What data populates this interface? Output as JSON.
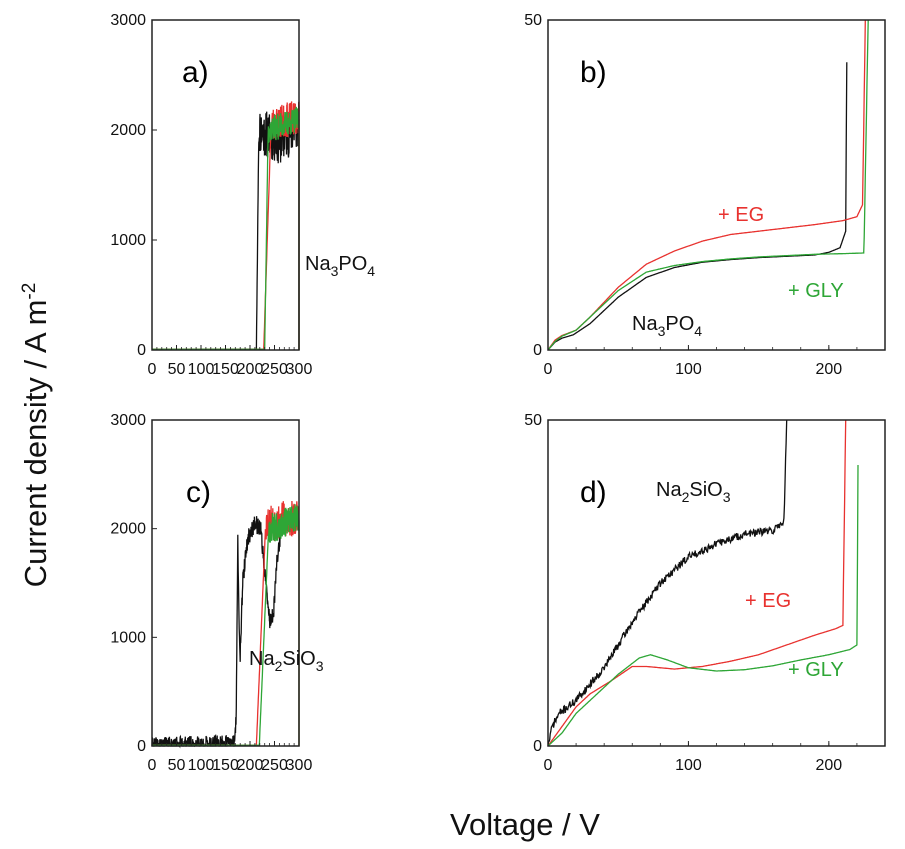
{
  "figure": {
    "ylabel": "Current density / A m",
    "ylabel_sup": "-2",
    "xlabel": "Voltage / V"
  },
  "colors": {
    "Na": "#111111",
    "EG": "#e8322f",
    "GLY": "#2ea636"
  },
  "chart_data": [
    {
      "type": "line",
      "panel": "a)",
      "xlim": [
        0,
        300
      ],
      "ylim": [
        0,
        3000
      ],
      "xticks": [
        0,
        50,
        100,
        150,
        200,
        250,
        300
      ],
      "yticks": [
        0,
        1000,
        2000,
        3000
      ],
      "annotations": [
        {
          "key": "Na",
          "base": "Na",
          "sub1": "3",
          "mid": "PO",
          "sub2": "4"
        }
      ],
      "series": [
        {
          "key": "Na",
          "onset": 213,
          "plateau": [
            [
              218,
              2000
            ],
            [
              260,
              1900
            ],
            [
              300,
              2050
            ]
          ],
          "noise": 220,
          "seed": 11
        },
        {
          "key": "EG",
          "onset": 228,
          "plateau": [
            [
              243,
              2050
            ],
            [
              300,
              2120
            ]
          ],
          "noise": 160,
          "seed": 23
        },
        {
          "key": "GLY",
          "onset": 230,
          "plateau": [
            [
              237,
              2000
            ],
            [
              300,
              2100
            ]
          ],
          "noise": 120,
          "seed": 37
        }
      ]
    },
    {
      "type": "line",
      "panel": "b)",
      "xlim": [
        0,
        240
      ],
      "ylim": [
        0,
        50
      ],
      "xticks": [
        0,
        100,
        200
      ],
      "yticks": [
        0,
        50
      ],
      "annotations": [
        {
          "key": "EG",
          "text": "+ EG"
        },
        {
          "key": "GLY",
          "text": "+ GLY"
        },
        {
          "key": "Na",
          "base": "Na",
          "sub1": "3",
          "mid": "PO",
          "sub2": "4"
        }
      ],
      "series": [
        {
          "key": "Na",
          "points": [
            [
              0,
              0
            ],
            [
              5,
              1.2
            ],
            [
              10,
              1.8
            ],
            [
              18,
              2.3
            ],
            [
              30,
              4
            ],
            [
              50,
              8
            ],
            [
              70,
              11
            ],
            [
              90,
              12.5
            ],
            [
              110,
              13.3
            ],
            [
              130,
              13.7
            ],
            [
              150,
              14
            ],
            [
              170,
              14.2
            ],
            [
              190,
              14.4
            ],
            [
              200,
              14.8
            ],
            [
              208,
              15.5
            ],
            [
              212,
              18
            ],
            [
              213,
              50
            ]
          ]
        },
        {
          "key": "EG",
          "points": [
            [
              0,
              0
            ],
            [
              5,
              1.5
            ],
            [
              10,
              2.2
            ],
            [
              20,
              3
            ],
            [
              30,
              5
            ],
            [
              50,
              9.5
            ],
            [
              70,
              13
            ],
            [
              90,
              15
            ],
            [
              110,
              16.5
            ],
            [
              130,
              17.5
            ],
            [
              150,
              18
            ],
            [
              170,
              18.5
            ],
            [
              190,
              19
            ],
            [
              200,
              19.3
            ],
            [
              210,
              19.6
            ],
            [
              220,
              20.2
            ],
            [
              224,
              22
            ],
            [
              226,
              50
            ]
          ]
        },
        {
          "key": "GLY",
          "points": [
            [
              0,
              0
            ],
            [
              5,
              1.3
            ],
            [
              10,
              2.1
            ],
            [
              20,
              3
            ],
            [
              30,
              5
            ],
            [
              50,
              9
            ],
            [
              70,
              11.8
            ],
            [
              90,
              12.8
            ],
            [
              110,
              13.4
            ],
            [
              130,
              13.8
            ],
            [
              150,
              14.1
            ],
            [
              170,
              14.3
            ],
            [
              190,
              14.5
            ],
            [
              210,
              14.6
            ],
            [
              225,
              14.7
            ],
            [
              228,
              50
            ]
          ]
        }
      ]
    },
    {
      "type": "line",
      "panel": "c)",
      "xlim": [
        0,
        300
      ],
      "ylim": [
        0,
        3000
      ],
      "xticks": [
        0,
        50,
        100,
        150,
        200,
        250,
        300
      ],
      "yticks": [
        0,
        1000,
        2000,
        3000
      ],
      "annotations": [
        {
          "key": "Na",
          "base": "Na",
          "sub1": "2",
          "mid": "SiO",
          "sub2": "3"
        }
      ],
      "series": [
        {
          "key": "Na",
          "points": [
            [
              0,
              0
            ],
            [
              50,
              8
            ],
            [
              100,
              15
            ],
            [
              150,
              20
            ],
            [
              168,
              25
            ],
            [
              172,
              300
            ],
            [
              175,
              1900
            ],
            [
              178,
              1100
            ],
            [
              180,
              850
            ],
            [
              185,
              1500
            ],
            [
              195,
              1900
            ],
            [
              210,
              2050
            ],
            [
              222,
              2000
            ],
            [
              232,
              1500
            ],
            [
              240,
              1150
            ],
            [
              248,
              1200
            ],
            [
              255,
              1700
            ],
            [
              265,
              2050
            ],
            [
              280,
              2100
            ],
            [
              300,
              2050
            ]
          ],
          "noise": 80,
          "seed": 41
        },
        {
          "key": "EG",
          "onset": 213,
          "plateau": [
            [
              232,
              2050
            ],
            [
              300,
              2100
            ]
          ],
          "noise": 180,
          "seed": 53
        },
        {
          "key": "GLY",
          "onset": 219,
          "plateau": [
            [
              238,
              2000
            ],
            [
              300,
              2100
            ]
          ],
          "noise": 140,
          "seed": 67
        }
      ]
    },
    {
      "type": "line",
      "panel": "d)",
      "xlim": [
        0,
        240
      ],
      "ylim": [
        0,
        50
      ],
      "xticks": [
        0,
        100,
        200
      ],
      "yticks": [
        0,
        50
      ],
      "annotations": [
        {
          "key": "Na",
          "base": "Na",
          "sub1": "2",
          "mid": "SiO",
          "sub2": "3"
        },
        {
          "key": "EG",
          "text": "+ EG"
        },
        {
          "key": "GLY",
          "text": "+ GLY"
        }
      ],
      "series": [
        {
          "key": "Na",
          "points": [
            [
              0,
              0
            ],
            [
              3,
              3
            ],
            [
              8,
              5
            ],
            [
              20,
              7
            ],
            [
              40,
              12
            ],
            [
              60,
              19
            ],
            [
              80,
              25
            ],
            [
              100,
              29
            ],
            [
              120,
              31
            ],
            [
              140,
              32.5
            ],
            [
              160,
              33
            ],
            [
              168,
              34.5
            ],
            [
              170,
              50
            ]
          ],
          "noise": 0.6,
          "seed": 71
        },
        {
          "key": "EG",
          "points": [
            [
              0,
              0
            ],
            [
              10,
              3
            ],
            [
              20,
              6
            ],
            [
              30,
              8
            ],
            [
              45,
              10
            ],
            [
              60,
              12.2
            ],
            [
              70,
              12.2
            ],
            [
              90,
              11.8
            ],
            [
              110,
              12.2
            ],
            [
              130,
              13
            ],
            [
              150,
              14
            ],
            [
              170,
              15.5
            ],
            [
              190,
              17
            ],
            [
              205,
              18
            ],
            [
              210,
              18.5
            ],
            [
              212,
              50
            ]
          ]
        },
        {
          "key": "GLY",
          "points": [
            [
              0,
              0
            ],
            [
              10,
              2
            ],
            [
              20,
              5
            ],
            [
              35,
              8
            ],
            [
              50,
              11
            ],
            [
              65,
              13.5
            ],
            [
              73,
              14
            ],
            [
              85,
              13.2
            ],
            [
              100,
              12
            ],
            [
              120,
              11.5
            ],
            [
              140,
              11.7
            ],
            [
              160,
              12.3
            ],
            [
              180,
              13.2
            ],
            [
              200,
              14
            ],
            [
              215,
              14.8
            ],
            [
              220,
              15.5
            ],
            [
              221,
              50
            ]
          ]
        }
      ]
    }
  ]
}
